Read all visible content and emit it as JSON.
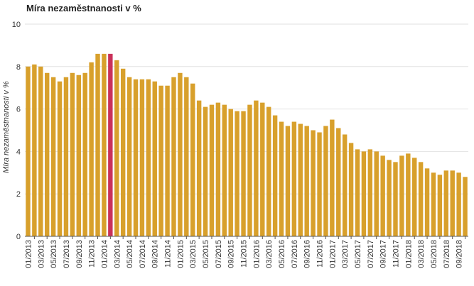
{
  "chart_data": {
    "type": "bar",
    "title": "Míra nezaměstnanosti v %",
    "xlabel": "",
    "ylabel": "Míra nezaměstnanosti v %",
    "ylim": [
      0,
      10
    ],
    "yticks": [
      0,
      2,
      4,
      6,
      8,
      10
    ],
    "grid": true,
    "colors": {
      "bar": "#D8A02C",
      "highlight": "#C9315A",
      "grid": "#e2e2e2",
      "axis": "#555555"
    },
    "highlight_index": 13,
    "categories": [
      "01/2013",
      "02/2013",
      "03/2013",
      "04/2013",
      "05/2013",
      "06/2013",
      "07/2013",
      "08/2013",
      "09/2013",
      "10/2013",
      "11/2013",
      "12/2013",
      "01/2014",
      "02/2014",
      "03/2014",
      "04/2014",
      "05/2014",
      "06/2014",
      "07/2014",
      "08/2014",
      "09/2014",
      "10/2014",
      "11/2014",
      "12/2014",
      "01/2015",
      "02/2015",
      "03/2015",
      "04/2015",
      "05/2015",
      "06/2015",
      "07/2015",
      "08/2015",
      "09/2015",
      "10/2015",
      "11/2015",
      "12/2015",
      "01/2016",
      "02/2016",
      "03/2016",
      "04/2016",
      "05/2016",
      "06/2016",
      "07/2016",
      "08/2016",
      "09/2016",
      "10/2016",
      "11/2016",
      "12/2016",
      "01/2017",
      "02/2017",
      "03/2017",
      "04/2017",
      "05/2017",
      "06/2017",
      "07/2017",
      "08/2017",
      "09/2017",
      "10/2017",
      "11/2017",
      "12/2017",
      "01/2018",
      "02/2018",
      "03/2018",
      "04/2018",
      "05/2018",
      "06/2018",
      "07/2018",
      "08/2018",
      "09/2018",
      "10/2018"
    ],
    "values": [
      8.0,
      8.1,
      8.0,
      7.7,
      7.5,
      7.3,
      7.5,
      7.7,
      7.6,
      7.7,
      8.2,
      8.6,
      8.6,
      8.6,
      8.3,
      7.9,
      7.5,
      7.4,
      7.4,
      7.4,
      7.3,
      7.1,
      7.1,
      7.5,
      7.7,
      7.5,
      7.2,
      6.4,
      6.1,
      6.2,
      6.3,
      6.2,
      6.0,
      5.9,
      5.9,
      6.2,
      6.4,
      6.3,
      6.1,
      5.7,
      5.4,
      5.2,
      5.4,
      5.3,
      5.2,
      5.0,
      4.9,
      5.2,
      5.5,
      5.1,
      4.8,
      4.4,
      4.1,
      4.0,
      4.1,
      4.0,
      3.8,
      3.6,
      3.5,
      3.8,
      3.9,
      3.7,
      3.5,
      3.2,
      3.0,
      2.9,
      3.1,
      3.1,
      3.0,
      2.8
    ]
  }
}
